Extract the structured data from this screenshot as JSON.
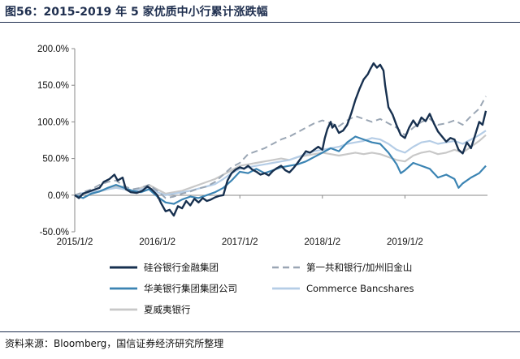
{
  "figure": {
    "title": "图56：2015-2019 年 5 家优质中小行累计涨跌幅",
    "source": "资料来源：Bloomberg，国信证券经济研究所整理"
  },
  "chart_data": {
    "type": "line",
    "ylim": [
      -50,
      200
    ],
    "y_ticks": [
      -50,
      0,
      50,
      100,
      150,
      200
    ],
    "y_tick_labels": [
      "-50.0%",
      "0.0%",
      "50.0%",
      "100.0%",
      "150.0%",
      "200.0%"
    ],
    "x_ticks": [
      "2015/1/2",
      "2016/1/2",
      "2017/1/2",
      "2018/1/2",
      "2019/1/2"
    ],
    "xlim": [
      2015.0,
      2020.0
    ],
    "grid": false,
    "legend_position": "bottom",
    "series": [
      {
        "name": "硅谷银行金融集团",
        "color": "#17304f",
        "width": 2.4,
        "dash": "",
        "points": [
          [
            2015.0,
            0
          ],
          [
            2015.05,
            -4
          ],
          [
            2015.1,
            2
          ],
          [
            2015.2,
            6
          ],
          [
            2015.3,
            10
          ],
          [
            2015.35,
            18
          ],
          [
            2015.42,
            22
          ],
          [
            2015.48,
            28
          ],
          [
            2015.52,
            20
          ],
          [
            2015.58,
            24
          ],
          [
            2015.62,
            8
          ],
          [
            2015.68,
            4
          ],
          [
            2015.75,
            3
          ],
          [
            2015.82,
            6
          ],
          [
            2015.88,
            12
          ],
          [
            2015.93,
            8
          ],
          [
            2016.0,
            0
          ],
          [
            2016.05,
            -12
          ],
          [
            2016.1,
            -22
          ],
          [
            2016.15,
            -20
          ],
          [
            2016.2,
            -28
          ],
          [
            2016.25,
            -15
          ],
          [
            2016.3,
            -18
          ],
          [
            2016.35,
            -8
          ],
          [
            2016.4,
            -14
          ],
          [
            2016.45,
            -5
          ],
          [
            2016.5,
            -10
          ],
          [
            2016.55,
            -4
          ],
          [
            2016.6,
            -8
          ],
          [
            2016.65,
            -6
          ],
          [
            2016.7,
            -3
          ],
          [
            2016.75,
            -1
          ],
          [
            2016.8,
            0
          ],
          [
            2016.85,
            20
          ],
          [
            2016.9,
            30
          ],
          [
            2016.95,
            35
          ],
          [
            2017.0,
            38
          ],
          [
            2017.05,
            36
          ],
          [
            2017.1,
            40
          ],
          [
            2017.15,
            35
          ],
          [
            2017.2,
            32
          ],
          [
            2017.25,
            28
          ],
          [
            2017.3,
            30
          ],
          [
            2017.35,
            27
          ],
          [
            2017.4,
            33
          ],
          [
            2017.45,
            37
          ],
          [
            2017.5,
            40
          ],
          [
            2017.55,
            34
          ],
          [
            2017.6,
            31
          ],
          [
            2017.65,
            37
          ],
          [
            2017.7,
            44
          ],
          [
            2017.75,
            52
          ],
          [
            2017.8,
            60
          ],
          [
            2017.85,
            58
          ],
          [
            2017.9,
            62
          ],
          [
            2017.95,
            66
          ],
          [
            2018.0,
            62
          ],
          [
            2018.03,
            78
          ],
          [
            2018.06,
            90
          ],
          [
            2018.1,
            100
          ],
          [
            2018.12,
            92
          ],
          [
            2018.15,
            96
          ],
          [
            2018.2,
            85
          ],
          [
            2018.25,
            88
          ],
          [
            2018.3,
            96
          ],
          [
            2018.35,
            112
          ],
          [
            2018.4,
            130
          ],
          [
            2018.45,
            145
          ],
          [
            2018.5,
            158
          ],
          [
            2018.55,
            165
          ],
          [
            2018.58,
            172
          ],
          [
            2018.62,
            180
          ],
          [
            2018.66,
            174
          ],
          [
            2018.7,
            178
          ],
          [
            2018.74,
            170
          ],
          [
            2018.76,
            150
          ],
          [
            2018.8,
            120
          ],
          [
            2018.85,
            110
          ],
          [
            2018.9,
            95
          ],
          [
            2018.95,
            82
          ],
          [
            2019.0,
            78
          ],
          [
            2019.05,
            92
          ],
          [
            2019.1,
            102
          ],
          [
            2019.15,
            94
          ],
          [
            2019.2,
            106
          ],
          [
            2019.25,
            101
          ],
          [
            2019.3,
            111
          ],
          [
            2019.35,
            98
          ],
          [
            2019.4,
            87
          ],
          [
            2019.45,
            80
          ],
          [
            2019.5,
            73
          ],
          [
            2019.55,
            78
          ],
          [
            2019.6,
            76
          ],
          [
            2019.65,
            62
          ],
          [
            2019.7,
            57
          ],
          [
            2019.75,
            72
          ],
          [
            2019.8,
            64
          ],
          [
            2019.85,
            82
          ],
          [
            2019.9,
            100
          ],
          [
            2019.94,
            96
          ],
          [
            2019.98,
            115
          ]
        ]
      },
      {
        "name": "第一共和银行/加州旧金山",
        "color": "#9aa6b4",
        "width": 2.0,
        "dash": "8,5",
        "points": [
          [
            2015.0,
            0
          ],
          [
            2015.1,
            4
          ],
          [
            2015.2,
            8
          ],
          [
            2015.3,
            14
          ],
          [
            2015.4,
            18
          ],
          [
            2015.5,
            20
          ],
          [
            2015.6,
            12
          ],
          [
            2015.7,
            8
          ],
          [
            2015.8,
            10
          ],
          [
            2015.9,
            14
          ],
          [
            2016.0,
            6
          ],
          [
            2016.1,
            -4
          ],
          [
            2016.2,
            -2
          ],
          [
            2016.3,
            2
          ],
          [
            2016.4,
            5
          ],
          [
            2016.5,
            9
          ],
          [
            2016.6,
            12
          ],
          [
            2016.7,
            18
          ],
          [
            2016.8,
            28
          ],
          [
            2016.9,
            38
          ],
          [
            2017.0,
            44
          ],
          [
            2017.1,
            56
          ],
          [
            2017.2,
            60
          ],
          [
            2017.3,
            64
          ],
          [
            2017.4,
            70
          ],
          [
            2017.5,
            76
          ],
          [
            2017.6,
            80
          ],
          [
            2017.7,
            86
          ],
          [
            2017.8,
            92
          ],
          [
            2017.9,
            98
          ],
          [
            2018.0,
            102
          ],
          [
            2018.1,
            98
          ],
          [
            2018.2,
            94
          ],
          [
            2018.3,
            102
          ],
          [
            2018.4,
            108
          ],
          [
            2018.5,
            104
          ],
          [
            2018.6,
            100
          ],
          [
            2018.7,
            104
          ],
          [
            2018.8,
            98
          ],
          [
            2018.9,
            92
          ],
          [
            2019.0,
            82
          ],
          [
            2019.1,
            92
          ],
          [
            2019.2,
            100
          ],
          [
            2019.3,
            104
          ],
          [
            2019.4,
            96
          ],
          [
            2019.5,
            98
          ],
          [
            2019.6,
            102
          ],
          [
            2019.7,
            96
          ],
          [
            2019.8,
            108
          ],
          [
            2019.9,
            118
          ],
          [
            2019.98,
            135
          ]
        ]
      },
      {
        "name": "华美银行集团集团公司",
        "color": "#3b84b3",
        "width": 2.2,
        "dash": "",
        "points": [
          [
            2015.0,
            0
          ],
          [
            2015.1,
            -4
          ],
          [
            2015.2,
            2
          ],
          [
            2015.3,
            5
          ],
          [
            2015.4,
            10
          ],
          [
            2015.5,
            14
          ],
          [
            2015.6,
            10
          ],
          [
            2015.7,
            6
          ],
          [
            2015.8,
            4
          ],
          [
            2015.9,
            8
          ],
          [
            2016.0,
            -2
          ],
          [
            2016.1,
            -10
          ],
          [
            2016.2,
            -12
          ],
          [
            2016.3,
            -6
          ],
          [
            2016.4,
            -2
          ],
          [
            2016.5,
            -4
          ],
          [
            2016.6,
            0
          ],
          [
            2016.7,
            4
          ],
          [
            2016.8,
            10
          ],
          [
            2016.9,
            20
          ],
          [
            2017.0,
            32
          ],
          [
            2017.1,
            30
          ],
          [
            2017.2,
            36
          ],
          [
            2017.3,
            30
          ],
          [
            2017.4,
            34
          ],
          [
            2017.5,
            38
          ],
          [
            2017.6,
            40
          ],
          [
            2017.7,
            42
          ],
          [
            2017.8,
            46
          ],
          [
            2017.9,
            52
          ],
          [
            2018.0,
            58
          ],
          [
            2018.1,
            64
          ],
          [
            2018.2,
            60
          ],
          [
            2018.3,
            72
          ],
          [
            2018.4,
            80
          ],
          [
            2018.5,
            76
          ],
          [
            2018.6,
            72
          ],
          [
            2018.7,
            70
          ],
          [
            2018.8,
            58
          ],
          [
            2018.9,
            42
          ],
          [
            2018.95,
            30
          ],
          [
            2019.0,
            34
          ],
          [
            2019.1,
            44
          ],
          [
            2019.2,
            40
          ],
          [
            2019.3,
            36
          ],
          [
            2019.4,
            24
          ],
          [
            2019.5,
            28
          ],
          [
            2019.6,
            22
          ],
          [
            2019.65,
            10
          ],
          [
            2019.7,
            16
          ],
          [
            2019.8,
            24
          ],
          [
            2019.9,
            30
          ],
          [
            2019.98,
            40
          ]
        ]
      },
      {
        "name": "Commerce Bancshares",
        "color": "#b5cde6",
        "width": 2.2,
        "dash": "",
        "points": [
          [
            2015.0,
            0
          ],
          [
            2015.1,
            3
          ],
          [
            2015.2,
            4
          ],
          [
            2015.3,
            6
          ],
          [
            2015.4,
            8
          ],
          [
            2015.5,
            10
          ],
          [
            2015.6,
            8
          ],
          [
            2015.7,
            6
          ],
          [
            2015.8,
            8
          ],
          [
            2015.9,
            10
          ],
          [
            2016.0,
            4
          ],
          [
            2016.1,
            0
          ],
          [
            2016.2,
            2
          ],
          [
            2016.3,
            4
          ],
          [
            2016.4,
            6
          ],
          [
            2016.5,
            9
          ],
          [
            2016.6,
            12
          ],
          [
            2016.7,
            15
          ],
          [
            2016.8,
            22
          ],
          [
            2016.9,
            30
          ],
          [
            2017.0,
            36
          ],
          [
            2017.1,
            38
          ],
          [
            2017.2,
            40
          ],
          [
            2017.3,
            42
          ],
          [
            2017.4,
            44
          ],
          [
            2017.5,
            46
          ],
          [
            2017.6,
            48
          ],
          [
            2017.7,
            52
          ],
          [
            2017.8,
            56
          ],
          [
            2017.9,
            60
          ],
          [
            2018.0,
            62
          ],
          [
            2018.1,
            64
          ],
          [
            2018.2,
            66
          ],
          [
            2018.3,
            70
          ],
          [
            2018.4,
            72
          ],
          [
            2018.5,
            74
          ],
          [
            2018.6,
            78
          ],
          [
            2018.7,
            76
          ],
          [
            2018.8,
            70
          ],
          [
            2018.9,
            62
          ],
          [
            2019.0,
            58
          ],
          [
            2019.1,
            66
          ],
          [
            2019.2,
            72
          ],
          [
            2019.3,
            74
          ],
          [
            2019.4,
            70
          ],
          [
            2019.5,
            72
          ],
          [
            2019.6,
            74
          ],
          [
            2019.7,
            70
          ],
          [
            2019.8,
            76
          ],
          [
            2019.9,
            82
          ],
          [
            2019.98,
            88
          ]
        ]
      },
      {
        "name": "夏威夷银行",
        "color": "#c8c8c8",
        "width": 2.2,
        "dash": "",
        "points": [
          [
            2015.0,
            0
          ],
          [
            2015.1,
            2
          ],
          [
            2015.2,
            4
          ],
          [
            2015.3,
            5
          ],
          [
            2015.4,
            8
          ],
          [
            2015.5,
            12
          ],
          [
            2015.6,
            8
          ],
          [
            2015.7,
            6
          ],
          [
            2015.8,
            10
          ],
          [
            2015.9,
            14
          ],
          [
            2016.0,
            8
          ],
          [
            2016.1,
            2
          ],
          [
            2016.2,
            4
          ],
          [
            2016.3,
            6
          ],
          [
            2016.4,
            10
          ],
          [
            2016.5,
            14
          ],
          [
            2016.6,
            18
          ],
          [
            2016.7,
            22
          ],
          [
            2016.8,
            28
          ],
          [
            2016.9,
            34
          ],
          [
            2017.0,
            40
          ],
          [
            2017.1,
            42
          ],
          [
            2017.2,
            44
          ],
          [
            2017.3,
            46
          ],
          [
            2017.4,
            48
          ],
          [
            2017.5,
            50
          ],
          [
            2017.6,
            48
          ],
          [
            2017.7,
            52
          ],
          [
            2017.8,
            54
          ],
          [
            2017.9,
            56
          ],
          [
            2018.0,
            58
          ],
          [
            2018.1,
            56
          ],
          [
            2018.2,
            54
          ],
          [
            2018.3,
            56
          ],
          [
            2018.4,
            58
          ],
          [
            2018.5,
            56
          ],
          [
            2018.6,
            58
          ],
          [
            2018.7,
            56
          ],
          [
            2018.8,
            52
          ],
          [
            2018.9,
            48
          ],
          [
            2019.0,
            46
          ],
          [
            2019.1,
            54
          ],
          [
            2019.2,
            58
          ],
          [
            2019.3,
            60
          ],
          [
            2019.4,
            56
          ],
          [
            2019.5,
            58
          ],
          [
            2019.6,
            62
          ],
          [
            2019.7,
            58
          ],
          [
            2019.8,
            66
          ],
          [
            2019.9,
            74
          ],
          [
            2019.98,
            82
          ]
        ]
      }
    ]
  }
}
